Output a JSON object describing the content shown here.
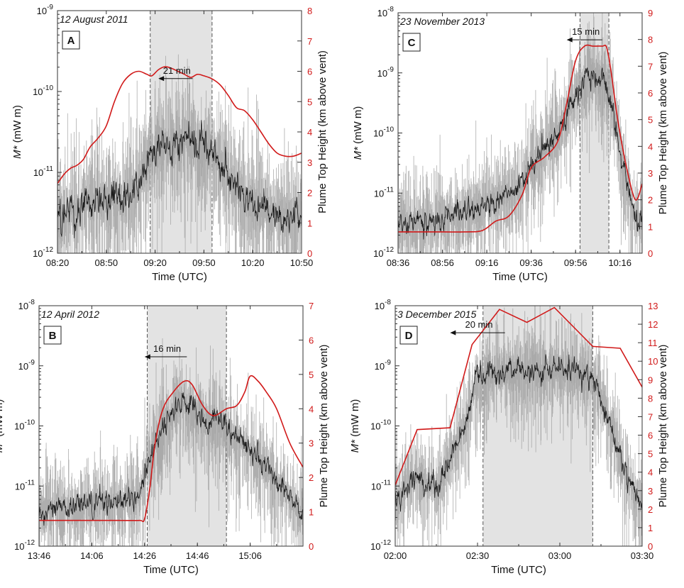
{
  "figure_title": "",
  "colors": {
    "plume": "#d11a1a",
    "shade": "#e3e3e3",
    "noise": "#a0a0a0",
    "signal": "#1a1a1a",
    "axis": "#333333"
  },
  "chart_data": [
    {
      "type": "line",
      "panel": "A",
      "date": "12 August 2011",
      "xlabel": "Time (UTC)",
      "ylabel": "M* (mW m)",
      "ylabel_main": "M*",
      "ylabel_unit": " (mW m)",
      "y2label": "Plume Top Height (km above vent)",
      "xlim": [
        0,
        150
      ],
      "x_ticks": [
        0,
        30,
        60,
        90,
        120,
        150
      ],
      "x_tick_labels": [
        "08:20",
        "08:50",
        "09:20",
        "09:50",
        "10:20",
        "10:50"
      ],
      "ylim_log10": [
        -12,
        -9
      ],
      "y_ticks_log10": [
        -12,
        -11,
        -10,
        -9
      ],
      "y2lim": [
        0,
        8
      ],
      "y2_ticks": [
        0,
        1,
        2,
        3,
        4,
        5,
        6,
        7,
        8
      ],
      "shaded_interval": [
        57,
        95
      ],
      "lag_annotation": {
        "text": "21 min",
        "arrow_from": 83,
        "arrow_to": 62,
        "level_log10": -9.84
      },
      "plume_height_series": {
        "x": [
          0,
          4,
          8,
          12,
          16,
          20,
          25,
          30,
          35,
          40,
          45,
          50,
          55,
          58,
          62,
          66,
          70,
          74,
          78,
          82,
          86,
          90,
          95,
          100,
          105,
          110,
          115,
          120,
          125,
          130,
          135,
          140,
          145,
          150
        ],
        "y": [
          2.3,
          2.6,
          2.8,
          2.9,
          3.1,
          3.5,
          3.8,
          4.2,
          5.0,
          5.6,
          5.9,
          6.0,
          5.9,
          5.85,
          6.05,
          6.15,
          6.1,
          6.0,
          5.9,
          5.8,
          5.9,
          5.85,
          5.75,
          5.55,
          5.2,
          4.8,
          4.7,
          4.4,
          4.0,
          3.6,
          3.3,
          3.2,
          3.2,
          3.3
        ]
      },
      "mstar_envelope": {
        "x": [
          0,
          20,
          40,
          55,
          60,
          75,
          95,
          105,
          120,
          150
        ],
        "y_log10": [
          -11.55,
          -11.35,
          -11.35,
          -10.95,
          -10.75,
          -10.6,
          -10.7,
          -11.05,
          -11.45,
          -11.55
        ]
      }
    },
    {
      "type": "line",
      "panel": "C",
      "date": "23 November 2013",
      "xlabel": "Time (UTC)",
      "ylabel": "M* (mW m)",
      "ylabel_main": "M*",
      "ylabel_unit": " (mW m)",
      "y2label": "Plume Top Height (km above vent)",
      "xlim": [
        0,
        110
      ],
      "x_ticks": [
        0,
        20,
        40,
        60,
        80,
        100
      ],
      "x_tick_labels": [
        "08:36",
        "08:56",
        "09:16",
        "09:36",
        "09:56",
        "10:16"
      ],
      "ylim_log10": [
        -12,
        -8
      ],
      "y_ticks_log10": [
        -12,
        -11,
        -10,
        -9,
        -8
      ],
      "y2lim": [
        0,
        9
      ],
      "y2_ticks": [
        0,
        1,
        2,
        3,
        4,
        5,
        6,
        7,
        8,
        9
      ],
      "shaded_interval": [
        82,
        95
      ],
      "lag_annotation": {
        "text": "15 min",
        "arrow_from": 92,
        "arrow_to": 76,
        "level_log10": -8.45
      },
      "plume_height_series": {
        "x": [
          0,
          15,
          30,
          38,
          44,
          50,
          56,
          60,
          66,
          72,
          76,
          80,
          84,
          88,
          92,
          94,
          96,
          99,
          103,
          107,
          110
        ],
        "y": [
          0.8,
          0.8,
          0.8,
          0.85,
          1.2,
          1.4,
          2.2,
          3.2,
          3.6,
          4.2,
          5.6,
          7.2,
          7.75,
          7.75,
          7.75,
          7.7,
          6.8,
          5.0,
          3.2,
          2.0,
          2.6
        ]
      },
      "mstar_envelope": {
        "x": [
          0,
          25,
          40,
          55,
          65,
          72,
          80,
          85,
          92,
          96,
          101,
          106,
          110
        ],
        "y_log10": [
          -11.5,
          -11.4,
          -11.2,
          -10.9,
          -10.3,
          -10.0,
          -9.4,
          -9.0,
          -9.1,
          -9.4,
          -10.5,
          -11.3,
          -11.5
        ]
      }
    },
    {
      "type": "line",
      "panel": "B",
      "date": "12 April 2012",
      "xlabel": "Time (UTC)",
      "ylabel": "M* (mW m)",
      "ylabel_main": "M*",
      "ylabel_unit": " (mW m)",
      "y2label": "Plume Top Height (km above vent)",
      "xlim": [
        0,
        100
      ],
      "x_ticks": [
        0,
        20,
        40,
        60,
        80
      ],
      "x_tick_labels": [
        "13:46",
        "14:06",
        "14:26",
        "14:46",
        "15:06"
      ],
      "ylim_log10": [
        -12,
        -8
      ],
      "y_ticks_log10": [
        -12,
        -11,
        -10,
        -9,
        -8
      ],
      "y2lim": [
        0,
        7
      ],
      "y2_ticks": [
        0,
        1,
        2,
        3,
        4,
        5,
        6,
        7
      ],
      "shaded_interval": [
        41,
        71
      ],
      "lag_annotation": {
        "text": "16 min",
        "arrow_from": 56,
        "arrow_to": 40,
        "level_log10": -8.85
      },
      "plume_height_series": {
        "x": [
          0,
          10,
          20,
          30,
          38,
          40,
          42,
          44,
          47,
          51,
          55,
          58,
          62,
          66,
          71,
          75,
          78,
          80,
          83,
          86,
          90,
          95,
          100
        ],
        "y": [
          0.75,
          0.75,
          0.75,
          0.75,
          0.75,
          0.8,
          1.7,
          3.0,
          4.0,
          4.5,
          4.8,
          4.7,
          4.1,
          3.8,
          4.0,
          4.1,
          4.5,
          4.95,
          4.8,
          4.5,
          4.0,
          3.0,
          2.3
        ]
      },
      "mstar_envelope": {
        "x": [
          0,
          20,
          38,
          42,
          48,
          55,
          62,
          70,
          80,
          90,
          100
        ],
        "y_log10": [
          -11.4,
          -11.3,
          -11.2,
          -10.5,
          -9.9,
          -9.6,
          -9.9,
          -10.0,
          -10.4,
          -10.9,
          -11.5
        ]
      }
    },
    {
      "type": "line",
      "panel": "D",
      "date": "3 December 2015",
      "xlabel": "Time (UTC)",
      "ylabel": "M* (mW m)",
      "ylabel_main": "M*",
      "ylabel_unit": " (mW m)",
      "y2label": "Plume Top Height (km above vent)",
      "xlim": [
        0,
        90
      ],
      "x_ticks": [
        0,
        30,
        60,
        90
      ],
      "x_tick_labels": [
        "02:00",
        "02:30",
        "03:00",
        "03:30"
      ],
      "ylim_log10": [
        -12,
        -8
      ],
      "y_ticks_log10": [
        -12,
        -11,
        -10,
        -9,
        -8
      ],
      "y2lim": [
        0,
        13
      ],
      "y2_ticks": [
        0,
        1,
        2,
        3,
        4,
        5,
        6,
        7,
        8,
        9,
        10,
        11,
        12,
        13
      ],
      "shaded_interval": [
        32,
        72
      ],
      "lag_annotation": {
        "text": "20 min",
        "arrow_from": 40,
        "arrow_to": 20,
        "level_log10": -8.45
      },
      "plume_height_series": {
        "x": [
          0,
          8,
          20,
          28,
          38,
          48,
          58,
          72,
          82,
          90
        ],
        "y": [
          3.3,
          6.3,
          6.4,
          10.9,
          12.8,
          12.1,
          12.9,
          10.8,
          10.7,
          8.6
        ]
      },
      "mstar_envelope": {
        "x": [
          0,
          8,
          16,
          20,
          25,
          30,
          40,
          55,
          65,
          72,
          78,
          85,
          90
        ],
        "y_log10": [
          -11.2,
          -10.85,
          -11.0,
          -10.5,
          -10.0,
          -9.2,
          -9.1,
          -9.1,
          -9.05,
          -9.2,
          -9.9,
          -10.9,
          -11.4
        ]
      }
    }
  ]
}
